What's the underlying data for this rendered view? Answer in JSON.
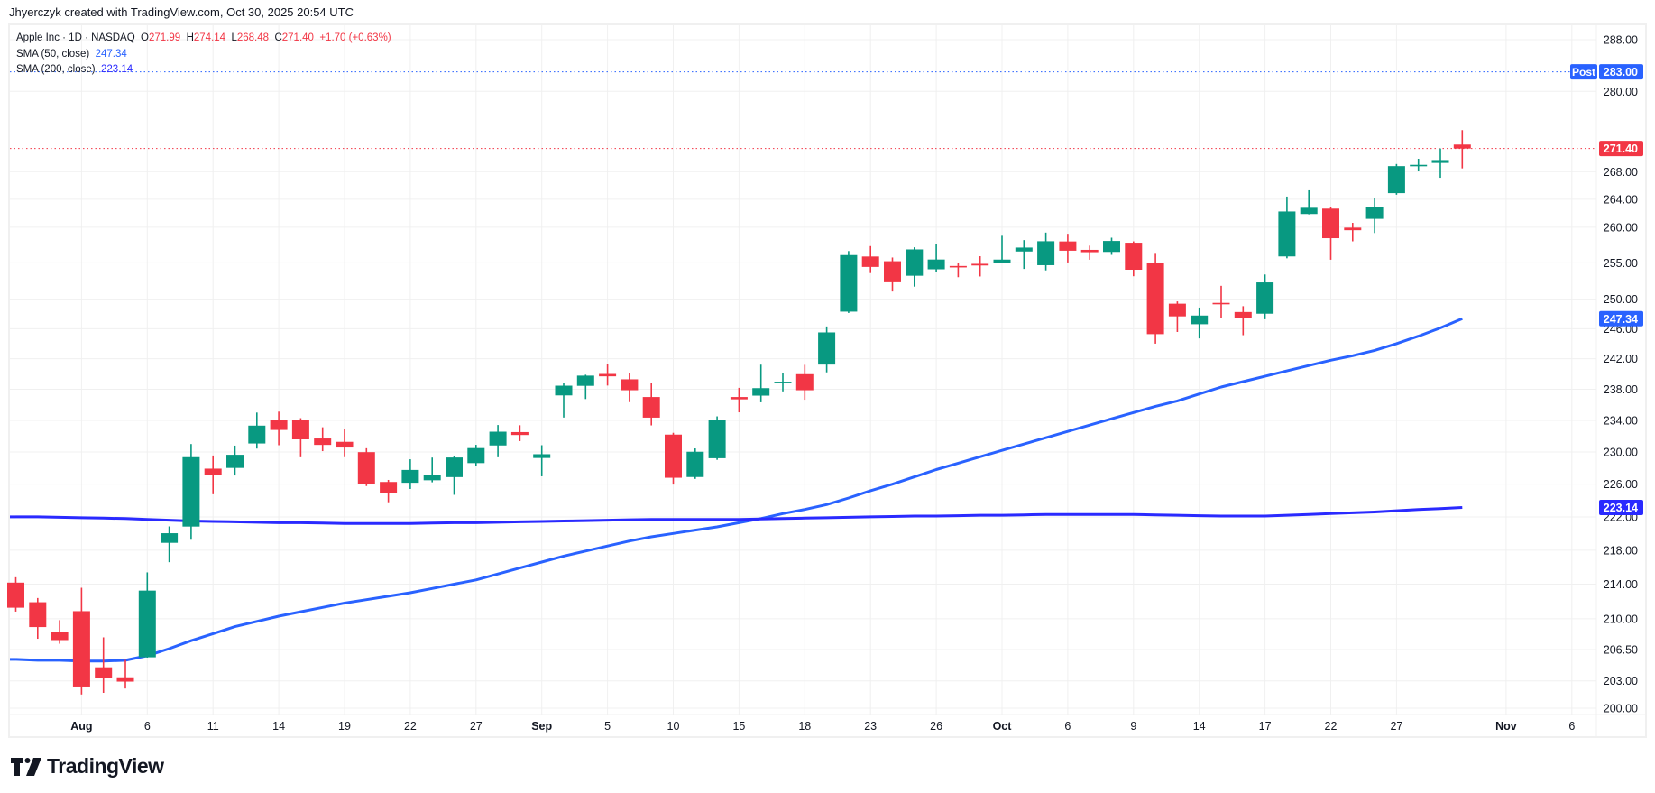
{
  "credit": "Jhyerczyk created with TradingView.com, Oct 30, 2025 20:54 UTC",
  "legend": {
    "symbol": "Apple Inc · 1D · NASDAQ",
    "o_label": "O",
    "o": "271.99",
    "h_label": "H",
    "h": "274.14",
    "l_label": "L",
    "l": "268.48",
    "c_label": "C",
    "c": "271.40",
    "change": "+1.70 (+0.63%)",
    "sma50_label": "SMA (50, close)",
    "sma50_value": "247.34",
    "sma200_label": "SMA (200, close)",
    "sma200_value": "223.14"
  },
  "logo": {
    "text": "TradingView"
  },
  "colors": {
    "up": "#089981",
    "down": "#f23645",
    "sma50": "#2962ff",
    "sma200": "#2a2aff",
    "post": "#2962ff",
    "grid": "#f0f0f0"
  },
  "chart_data": {
    "type": "candlestick",
    "y_scale": "log",
    "ylim": [
      199.5,
      291
    ],
    "grid": true,
    "y_ticks": [
      "288.00",
      "280.00",
      "268.00",
      "264.00",
      "260.00",
      "255.00",
      "250.00",
      "246.00",
      "242.00",
      "238.00",
      "234.00",
      "230.00",
      "226.00",
      "222.00",
      "218.00",
      "214.00",
      "210.00",
      "206.50",
      "203.00",
      "200.00"
    ],
    "x_ticks": [
      {
        "label": "Aug",
        "index": 3,
        "bold": true
      },
      {
        "label": "6",
        "index": 6
      },
      {
        "label": "11",
        "index": 9
      },
      {
        "label": "14",
        "index": 12
      },
      {
        "label": "19",
        "index": 15
      },
      {
        "label": "22",
        "index": 18
      },
      {
        "label": "27",
        "index": 21
      },
      {
        "label": "Sep",
        "index": 24,
        "bold": true
      },
      {
        "label": "5",
        "index": 27
      },
      {
        "label": "10",
        "index": 30
      },
      {
        "label": "15",
        "index": 33
      },
      {
        "label": "18",
        "index": 36
      },
      {
        "label": "23",
        "index": 39
      },
      {
        "label": "26",
        "index": 42
      },
      {
        "label": "Oct",
        "index": 45,
        "bold": true
      },
      {
        "label": "6",
        "index": 48
      },
      {
        "label": "9",
        "index": 51
      },
      {
        "label": "14",
        "index": 54
      },
      {
        "label": "17",
        "index": 57
      },
      {
        "label": "22",
        "index": 60
      },
      {
        "label": "27",
        "index": 63
      },
      {
        "label": "Nov",
        "index": 68,
        "bold": true
      },
      {
        "label": "6",
        "index": 71
      }
    ],
    "price_labels": [
      {
        "tag": "Post",
        "value": "283.00",
        "price": 283.0,
        "color": "#2962ff"
      },
      {
        "value": "271.40",
        "price": 271.4,
        "color": "#f23645"
      },
      {
        "value": "247.34",
        "price": 247.34,
        "color": "#2962ff"
      },
      {
        "value": "223.14",
        "price": 223.14,
        "color": "#2a2aff"
      }
    ],
    "dates": [
      "Jul 29",
      "Jul 30",
      "Jul 31",
      "Aug 1",
      "Aug 4",
      "Aug 5",
      "Aug 6",
      "Aug 7",
      "Aug 8",
      "Aug 11",
      "Aug 12",
      "Aug 13",
      "Aug 14",
      "Aug 15",
      "Aug 18",
      "Aug 19",
      "Aug 20",
      "Aug 21",
      "Aug 22",
      "Aug 25",
      "Aug 26",
      "Aug 27",
      "Aug 28",
      "Aug 29",
      "Sep 2",
      "Sep 3",
      "Sep 4",
      "Sep 5",
      "Sep 8",
      "Sep 9",
      "Sep 10",
      "Sep 11",
      "Sep 12",
      "Sep 15",
      "Sep 16",
      "Sep 17",
      "Sep 18",
      "Sep 19",
      "Sep 22",
      "Sep 23",
      "Sep 24",
      "Sep 25",
      "Sep 26",
      "Sep 29",
      "Sep 30",
      "Oct 1",
      "Oct 2",
      "Oct 3",
      "Oct 6",
      "Oct 7",
      "Oct 8",
      "Oct 9",
      "Oct 10",
      "Oct 13",
      "Oct 14",
      "Oct 15",
      "Oct 16",
      "Oct 17",
      "Oct 20",
      "Oct 21",
      "Oct 22",
      "Oct 23",
      "Oct 24",
      "Oct 27",
      "Oct 28",
      "Oct 29",
      "Oct 30"
    ],
    "ohlc": [
      [
        214.18,
        214.81,
        210.82,
        211.27
      ],
      [
        211.9,
        212.39,
        207.72,
        209.05
      ],
      [
        208.49,
        209.84,
        207.16,
        207.57
      ],
      [
        210.87,
        213.58,
        201.5,
        202.38
      ],
      [
        204.51,
        207.88,
        201.68,
        203.35
      ],
      [
        203.4,
        205.34,
        202.16,
        202.92
      ],
      [
        205.63,
        215.38,
        205.59,
        213.25
      ],
      [
        218.88,
        220.85,
        216.58,
        220.03
      ],
      [
        220.83,
        231.0,
        219.25,
        229.35
      ],
      [
        227.92,
        229.56,
        224.76,
        227.18
      ],
      [
        228.01,
        230.8,
        227.07,
        229.65
      ],
      [
        231.07,
        235.0,
        230.43,
        233.33
      ],
      [
        234.06,
        235.12,
        230.85,
        232.78
      ],
      [
        234.0,
        234.28,
        229.34,
        231.59
      ],
      [
        231.7,
        233.12,
        230.11,
        230.89
      ],
      [
        231.28,
        232.87,
        229.35,
        230.56
      ],
      [
        229.98,
        230.47,
        225.77,
        226.01
      ],
      [
        226.27,
        226.52,
        223.78,
        224.9
      ],
      [
        226.17,
        229.09,
        225.41,
        227.76
      ],
      [
        226.48,
        229.3,
        226.23,
        227.16
      ],
      [
        226.87,
        229.49,
        224.69,
        229.31
      ],
      [
        228.61,
        230.9,
        228.26,
        230.49
      ],
      [
        230.82,
        233.41,
        229.34,
        232.56
      ],
      [
        232.51,
        233.38,
        231.37,
        232.14
      ],
      [
        229.25,
        230.85,
        226.97,
        229.72
      ],
      [
        237.21,
        238.85,
        234.36,
        238.47
      ],
      [
        238.45,
        239.9,
        236.74,
        239.78
      ],
      [
        240.0,
        241.32,
        238.49,
        239.69
      ],
      [
        239.3,
        240.15,
        236.34,
        237.88
      ],
      [
        237.0,
        238.78,
        233.36,
        234.35
      ],
      [
        232.19,
        232.42,
        225.95,
        226.79
      ],
      [
        226.88,
        230.45,
        226.65,
        230.03
      ],
      [
        229.22,
        234.51,
        229.02,
        234.07
      ],
      [
        237.0,
        238.19,
        235.03,
        236.7
      ],
      [
        237.18,
        241.22,
        236.32,
        238.15
      ],
      [
        238.97,
        240.1,
        237.73,
        238.99
      ],
      [
        239.97,
        241.2,
        236.65,
        237.88
      ],
      [
        241.23,
        246.3,
        240.21,
        245.5
      ],
      [
        248.3,
        256.64,
        248.12,
        256.08
      ],
      [
        255.88,
        257.34,
        253.58,
        254.43
      ],
      [
        255.22,
        255.74,
        251.04,
        252.31
      ],
      [
        253.21,
        257.17,
        251.71,
        256.87
      ],
      [
        254.1,
        257.6,
        253.78,
        255.46
      ],
      [
        254.56,
        255.0,
        253.01,
        254.43
      ],
      [
        254.86,
        255.92,
        253.11,
        254.63
      ],
      [
        255.04,
        258.79,
        254.93,
        255.45
      ],
      [
        256.58,
        258.18,
        254.15,
        257.13
      ],
      [
        254.67,
        259.24,
        253.95,
        258.02
      ],
      [
        257.99,
        259.07,
        255.05,
        256.69
      ],
      [
        256.81,
        257.4,
        255.43,
        256.48
      ],
      [
        256.52,
        258.52,
        256.11,
        258.06
      ],
      [
        257.81,
        258.0,
        253.14,
        254.04
      ],
      [
        254.94,
        256.38,
        244.0,
        245.27
      ],
      [
        249.38,
        249.69,
        245.56,
        247.66
      ],
      [
        246.6,
        248.85,
        244.7,
        247.77
      ],
      [
        249.49,
        251.82,
        247.47,
        249.34
      ],
      [
        248.25,
        249.04,
        245.13,
        247.45
      ],
      [
        248.02,
        253.38,
        247.27,
        252.29
      ],
      [
        255.89,
        264.38,
        255.63,
        262.24
      ],
      [
        261.88,
        265.29,
        261.83,
        262.77
      ],
      [
        262.65,
        262.85,
        255.43,
        258.45
      ],
      [
        259.94,
        260.62,
        258.01,
        259.58
      ],
      [
        261.19,
        264.13,
        259.18,
        262.82
      ],
      [
        264.88,
        269.12,
        264.65,
        268.81
      ],
      [
        268.99,
        269.89,
        268.15,
        269.0
      ],
      [
        269.28,
        271.41,
        267.11,
        269.7
      ],
      [
        271.99,
        274.14,
        268.48,
        271.4
      ]
    ],
    "series": [
      {
        "name": "SMA (50, close)",
        "color": "#2962ff",
        "values": [
          205.4,
          205.3,
          205.3,
          205.2,
          205.2,
          205.3,
          205.8,
          206.6,
          207.5,
          208.3,
          209.1,
          209.7,
          210.3,
          210.8,
          211.3,
          211.8,
          212.2,
          212.6,
          213.0,
          213.5,
          214.0,
          214.5,
          215.2,
          215.9,
          216.6,
          217.3,
          217.9,
          218.5,
          219.1,
          219.6,
          220.0,
          220.4,
          220.8,
          221.3,
          221.8,
          222.4,
          222.9,
          223.5,
          224.3,
          225.2,
          226.0,
          226.9,
          227.8,
          228.6,
          229.4,
          230.2,
          231.0,
          231.8,
          232.6,
          233.4,
          234.2,
          235.0,
          235.8,
          236.5,
          237.4,
          238.3,
          239.0,
          239.7,
          240.4,
          241.1,
          241.8,
          242.4,
          243.1,
          244.0,
          245.0,
          246.1,
          247.34
        ]
      },
      {
        "name": "SMA (200, close)",
        "color": "#2a2aff",
        "values": [
          222.0,
          222.0,
          221.95,
          221.9,
          221.85,
          221.8,
          221.7,
          221.6,
          221.5,
          221.45,
          221.4,
          221.35,
          221.3,
          221.3,
          221.25,
          221.2,
          221.2,
          221.2,
          221.2,
          221.25,
          221.3,
          221.3,
          221.35,
          221.4,
          221.45,
          221.5,
          221.55,
          221.6,
          221.65,
          221.7,
          221.7,
          221.7,
          221.7,
          221.7,
          221.75,
          221.8,
          221.85,
          221.9,
          221.95,
          222.0,
          222.05,
          222.1,
          222.1,
          222.15,
          222.2,
          222.2,
          222.25,
          222.3,
          222.3,
          222.3,
          222.3,
          222.3,
          222.25,
          222.2,
          222.15,
          222.1,
          222.1,
          222.1,
          222.2,
          222.3,
          222.4,
          222.5,
          222.6,
          222.75,
          222.9,
          223.0,
          223.14
        ]
      }
    ]
  }
}
